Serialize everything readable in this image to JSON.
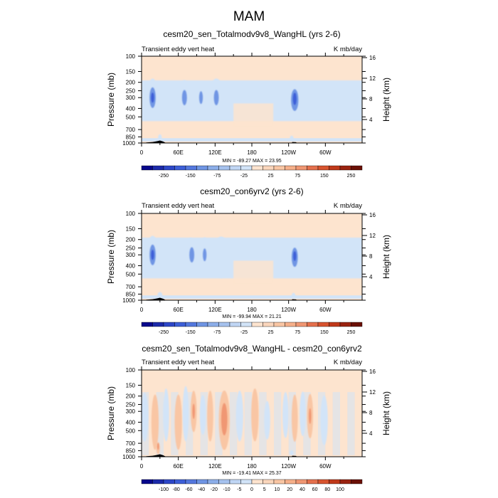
{
  "figure": {
    "title": "MAM"
  },
  "colors": {
    "panel_background": "#fde4cf",
    "light_blue": "#d2e4f8",
    "mid_blue": "#a6c2ee",
    "blue": "#6f95e4",
    "deep_blue": "#3d5fd8",
    "light_orange": "#f9c6a4",
    "orange": "#f09773",
    "deep_orange": "#e5704d",
    "topography": "#000000"
  },
  "chart_data": [
    {
      "type": "heatmap",
      "title": "cesm20_sen_Totalmodv9v8_WangHL (yrs 2-6)",
      "left_label": "Transient eddy vert heat",
      "right_label": "K mb/day",
      "ylabel": "Pressure (mb)",
      "ylabel_right": "Height (km)",
      "x_ticks": [
        "0",
        "60E",
        "120E",
        "180",
        "120W",
        "60W"
      ],
      "y_ticks": [
        "100",
        "150",
        "200",
        "250",
        "300",
        "400",
        "500",
        "700",
        "850",
        "1000"
      ],
      "height_ticks": [
        "16",
        "12",
        "8",
        "4"
      ],
      "stats": "MIN = -89.27  MAX = 23.95",
      "colorbar": {
        "labels": [
          "-250",
          "-150",
          "-75",
          "-25",
          "25",
          "75",
          "150",
          "250"
        ],
        "colors": [
          "#08088c",
          "#1c2aaa",
          "#2d47c8",
          "#3d5fd8",
          "#5478de",
          "#6f95e4",
          "#8caee9",
          "#a6c2ee",
          "#c0d6f4",
          "#d2e4f8",
          "#fde4cf",
          "#fad6bc",
          "#f9c6a4",
          "#f6b08a",
          "#f09773",
          "#e5704d",
          "#d8542f",
          "#c0391a",
          "#9a2310",
          "#6b1006"
        ]
      },
      "blobs": [
        {
          "lon": 18,
          "p": 300,
          "dlon": 9,
          "dp": 140,
          "lvl": 1
        },
        {
          "lon": 18,
          "p": 300,
          "dlon": 5,
          "dp": 80,
          "lvl": 2
        },
        {
          "lon": 18,
          "p": 300,
          "dlon": 2.5,
          "dp": 40,
          "lvl": 3
        },
        {
          "lon": 70,
          "p": 300,
          "dlon": 10,
          "dp": 130,
          "lvl": 1
        },
        {
          "lon": 70,
          "p": 300,
          "dlon": 4,
          "dp": 60,
          "lvl": 2
        },
        {
          "lon": 97,
          "p": 300,
          "dlon": 9,
          "dp": 120,
          "lvl": 1
        },
        {
          "lon": 97,
          "p": 300,
          "dlon": 3,
          "dp": 50,
          "lvl": 2
        },
        {
          "lon": 122,
          "p": 300,
          "dlon": 12,
          "dp": 140,
          "lvl": 1
        },
        {
          "lon": 122,
          "p": 300,
          "dlon": 4,
          "dp": 60,
          "lvl": 2
        },
        {
          "lon": 248,
          "p": 320,
          "dlon": 12,
          "dp": 150,
          "lvl": 1
        },
        {
          "lon": 250,
          "p": 320,
          "dlon": 6,
          "dp": 90,
          "lvl": 2
        },
        {
          "lon": 250,
          "p": 310,
          "dlon": 3,
          "dp": 50,
          "lvl": 3
        },
        {
          "lon": 30,
          "p": 870,
          "dlon": 3,
          "dp": 80,
          "lvl": 1
        },
        {
          "lon": 245,
          "p": 880,
          "dlon": 3,
          "dp": 60,
          "lvl": 1
        }
      ]
    },
    {
      "type": "heatmap",
      "title": "cesm20_con6yrv2 (yrs 2-6)",
      "left_label": "Transient eddy vert heat",
      "right_label": "K mb/day",
      "ylabel": "Pressure (mb)",
      "ylabel_right": "Height (km)",
      "x_ticks": [
        "0",
        "60E",
        "120E",
        "180",
        "120W",
        "60W"
      ],
      "y_ticks": [
        "100",
        "150",
        "200",
        "250",
        "300",
        "400",
        "500",
        "700",
        "850",
        "1000"
      ],
      "height_ticks": [
        "16",
        "12",
        "8",
        "4"
      ],
      "stats": "MIN = -99.94  MAX = 21.21",
      "colorbar": {
        "labels": [
          "-250",
          "-150",
          "-75",
          "-25",
          "25",
          "75",
          "150",
          "250"
        ],
        "colors": [
          "#08088c",
          "#1c2aaa",
          "#2d47c8",
          "#3d5fd8",
          "#5478de",
          "#6f95e4",
          "#8caee9",
          "#a6c2ee",
          "#c0d6f4",
          "#d2e4f8",
          "#fde4cf",
          "#fad6bc",
          "#f9c6a4",
          "#f6b08a",
          "#f09773",
          "#e5704d",
          "#d8542f",
          "#c0391a",
          "#9a2310",
          "#6b1006"
        ]
      },
      "blobs": [
        {
          "lon": 18,
          "p": 300,
          "dlon": 10,
          "dp": 140,
          "lvl": 1
        },
        {
          "lon": 18,
          "p": 300,
          "dlon": 5,
          "dp": 80,
          "lvl": 2
        },
        {
          "lon": 18,
          "p": 300,
          "dlon": 2.5,
          "dp": 40,
          "lvl": 3
        },
        {
          "lon": 80,
          "p": 310,
          "dlon": 10,
          "dp": 140,
          "lvl": 1
        },
        {
          "lon": 82,
          "p": 300,
          "dlon": 4,
          "dp": 60,
          "lvl": 2
        },
        {
          "lon": 103,
          "p": 300,
          "dlon": 8,
          "dp": 130,
          "lvl": 1
        },
        {
          "lon": 103,
          "p": 300,
          "dlon": 3,
          "dp": 50,
          "lvl": 2
        },
        {
          "lon": 130,
          "p": 320,
          "dlon": 14,
          "dp": 160,
          "lvl": 1
        },
        {
          "lon": 248,
          "p": 320,
          "dlon": 12,
          "dp": 150,
          "lvl": 1
        },
        {
          "lon": 250,
          "p": 320,
          "dlon": 5,
          "dp": 80,
          "lvl": 2
        },
        {
          "lon": 250,
          "p": 310,
          "dlon": 2.5,
          "dp": 40,
          "lvl": 3
        },
        {
          "lon": 30,
          "p": 880,
          "dlon": 4,
          "dp": 80,
          "lvl": 1
        },
        {
          "lon": 248,
          "p": 880,
          "dlon": 3,
          "dp": 60,
          "lvl": 1
        }
      ]
    },
    {
      "type": "heatmap",
      "title": "cesm20_sen_Totalmodv9v8_WangHL - cesm20_con6yrv2",
      "left_label": "Transient eddy vert heat",
      "right_label": "K mb/day",
      "ylabel": "Pressure (mb)",
      "ylabel_right": "Height (km)",
      "x_ticks": [
        "0",
        "60E",
        "120E",
        "180",
        "120W",
        "60W"
      ],
      "y_ticks": [
        "100",
        "150",
        "200",
        "250",
        "300",
        "400",
        "500",
        "700",
        "850",
        "1000"
      ],
      "height_ticks": [
        "16",
        "12",
        "8",
        "4"
      ],
      "stats": "MIN = -19.41  MAX = 25.37",
      "colorbar": {
        "labels": [
          "-100",
          "-80",
          "-60",
          "-40",
          "-20",
          "-10",
          "-5",
          "0",
          "5",
          "10",
          "20",
          "40",
          "60",
          "80",
          "100"
        ],
        "colors": [
          "#08088c",
          "#1c2aaa",
          "#2d47c8",
          "#3d5fd8",
          "#5478de",
          "#6f95e4",
          "#8caee9",
          "#a6c2ee",
          "#c0d6f4",
          "#d2e4f8",
          "#fde4cf",
          "#fad6bc",
          "#f9c6a4",
          "#f6b08a",
          "#f09773",
          "#e5704d",
          "#d8542f",
          "#c0391a",
          "#9a2310",
          "#6b1006"
        ]
      },
      "blobs": [
        {
          "lon": 5,
          "p": 350,
          "dlon": 6,
          "dp": 200,
          "lvl": 1
        },
        {
          "lon": 22,
          "p": 400,
          "dlon": 6,
          "dp": 250,
          "lvl": -1
        },
        {
          "lon": 40,
          "p": 330,
          "dlon": 5,
          "dp": 200,
          "lvl": 1
        },
        {
          "lon": 60,
          "p": 400,
          "dlon": 6,
          "dp": 250,
          "lvl": -1
        },
        {
          "lon": 72,
          "p": 320,
          "dlon": 5,
          "dp": 200,
          "lvl": 1
        },
        {
          "lon": 85,
          "p": 300,
          "dlon": 5,
          "dp": 150,
          "lvl": -1
        },
        {
          "lon": 85,
          "p": 300,
          "dlon": 2,
          "dp": 60,
          "lvl": -2
        },
        {
          "lon": 100,
          "p": 330,
          "dlon": 5,
          "dp": 160,
          "lvl": 1
        },
        {
          "lon": 112,
          "p": 340,
          "dlon": 5,
          "dp": 200,
          "lvl": -1
        },
        {
          "lon": 135,
          "p": 380,
          "dlon": 9,
          "dp": 250,
          "lvl": -1
        },
        {
          "lon": 135,
          "p": 370,
          "dlon": 5,
          "dp": 150,
          "lvl": -2
        },
        {
          "lon": 160,
          "p": 340,
          "dlon": 6,
          "dp": 200,
          "lvl": 1
        },
        {
          "lon": 185,
          "p": 330,
          "dlon": 6,
          "dp": 200,
          "lvl": -1
        },
        {
          "lon": 205,
          "p": 380,
          "dlon": 5,
          "dp": 180,
          "lvl": 1
        },
        {
          "lon": 235,
          "p": 330,
          "dlon": 5,
          "dp": 180,
          "lvl": 1
        },
        {
          "lon": 250,
          "p": 360,
          "dlon": 5,
          "dp": 200,
          "lvl": -1
        },
        {
          "lon": 263,
          "p": 320,
          "dlon": 5,
          "dp": 170,
          "lvl": 1
        },
        {
          "lon": 275,
          "p": 340,
          "dlon": 5,
          "dp": 180,
          "lvl": -1
        },
        {
          "lon": 275,
          "p": 340,
          "dlon": 2,
          "dp": 70,
          "lvl": -2
        },
        {
          "lon": 298,
          "p": 380,
          "dlon": 6,
          "dp": 220,
          "lvl": 1
        },
        {
          "lon": 27,
          "p": 800,
          "dlon": 3,
          "dp": 130,
          "lvl": -1
        },
        {
          "lon": 27,
          "p": 760,
          "dlon": 1.5,
          "dp": 70,
          "lvl": -2
        },
        {
          "lon": 245,
          "p": 900,
          "dlon": 3,
          "dp": 60,
          "lvl": 1
        }
      ]
    }
  ]
}
